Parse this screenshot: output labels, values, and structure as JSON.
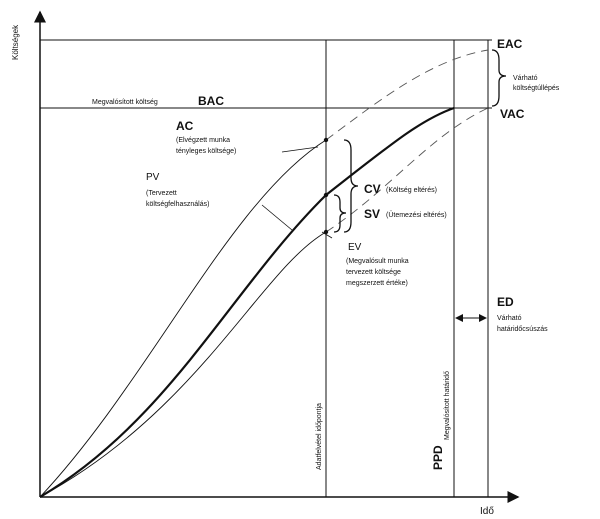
{
  "axes": {
    "y_label": "Költségek",
    "x_label": "Idő"
  },
  "bac": {
    "prefix": "Megvalósított költség",
    "code": "BAC"
  },
  "eac": {
    "code": "EAC"
  },
  "vac": {
    "code": "VAC",
    "desc_line1": "Várható",
    "desc_line2": "költségtúllépés"
  },
  "ac": {
    "code": "AC",
    "line1": "(Elvégzett munka",
    "line2": "tényleges költsége)"
  },
  "pv": {
    "code": "PV",
    "line1": "(Tervezett",
    "line2": "költségfelhasználás)"
  },
  "cv": {
    "code": "CV",
    "desc": "(Költség eltérés)"
  },
  "sv": {
    "code": "SV",
    "desc": "(Ütemezési eltérés)"
  },
  "ev": {
    "code": "EV",
    "line1": "(Megvalósult munka",
    "line2": "tervezett költsége",
    "line3": "megszerzett értéke)"
  },
  "ed": {
    "code": "ED",
    "line1": "Várható",
    "line2": "határidőcsúszás"
  },
  "ppd": {
    "code": "PPD",
    "desc": "Megvalósított határidő"
  },
  "report_date": "Adatfelvétel időpontja",
  "colors": {
    "ink": "#111111",
    "dashed": "#555555"
  }
}
